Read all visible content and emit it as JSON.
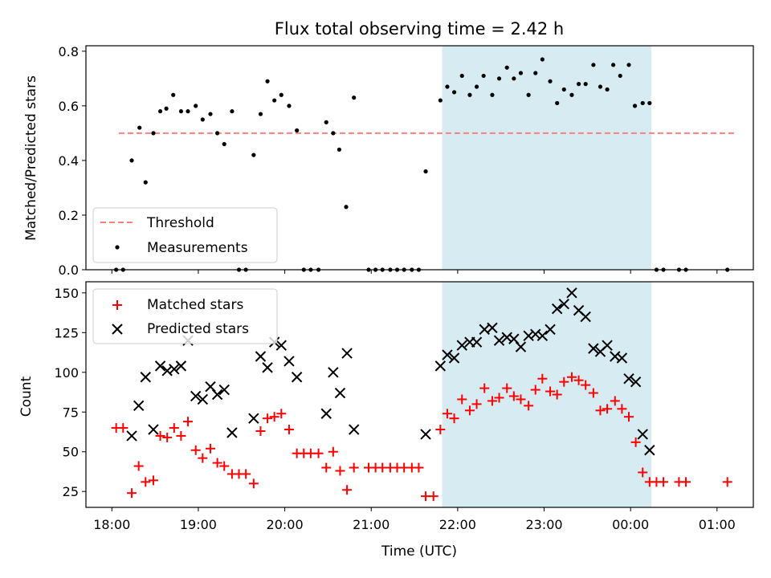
{
  "chart_data": [
    {
      "type": "scatter",
      "title": "Flux total observing time = 2.42 h",
      "xlabel": "",
      "ylabel": "Matched/Predicted stars",
      "ylim": [
        0,
        0.82
      ],
      "yticks": [
        "0.0",
        "0.2",
        "0.4",
        "0.6",
        "0.8"
      ],
      "xlim": [
        17.7,
        25.42
      ],
      "x_tick_values": [
        18,
        19,
        20,
        21,
        22,
        23,
        24,
        25
      ],
      "highlight_span": [
        21.82,
        24.24
      ],
      "highlight_color": "#add8e6",
      "threshold": {
        "name": "Threshold",
        "value": 0.5,
        "x_range": [
          18.08,
          25.2
        ],
        "color": "#ff7f7f"
      },
      "legend": {
        "position": "lower-left",
        "entries": [
          "Threshold",
          "Measurements"
        ]
      },
      "series": [
        {
          "name": "Measurements",
          "color": "#000000",
          "x": [
            18.05,
            18.13,
            18.23,
            18.32,
            18.39,
            18.48,
            18.56,
            18.63,
            18.71,
            18.8,
            18.88,
            18.97,
            19.05,
            19.14,
            19.22,
            19.3,
            19.39,
            19.47,
            19.55,
            19.64,
            19.72,
            19.8,
            19.88,
            19.96,
            20.05,
            20.14,
            20.22,
            20.3,
            20.39,
            20.48,
            20.56,
            20.63,
            20.71,
            20.8,
            20.97,
            21.05,
            21.13,
            21.22,
            21.3,
            21.38,
            21.47,
            21.55,
            21.63,
            21.8,
            21.88,
            21.96,
            22.05,
            22.14,
            22.22,
            22.3,
            22.4,
            22.48,
            22.57,
            22.65,
            22.73,
            22.82,
            22.9,
            22.98,
            23.07,
            23.15,
            23.23,
            23.32,
            23.4,
            23.48,
            23.57,
            23.65,
            23.73,
            23.8,
            23.88,
            23.98,
            24.05,
            24.14,
            24.22,
            24.3,
            24.38,
            24.56,
            24.64,
            25.12
          ],
          "values": [
            0.0,
            0.0,
            0.4,
            0.52,
            0.32,
            0.5,
            0.58,
            0.59,
            0.64,
            0.58,
            0.58,
            0.6,
            0.55,
            0.57,
            0.5,
            0.46,
            0.58,
            0.0,
            0.0,
            0.42,
            0.57,
            0.69,
            0.62,
            0.64,
            0.6,
            0.51,
            0.0,
            0.0,
            0.0,
            0.54,
            0.5,
            0.44,
            0.23,
            0.63,
            0.0,
            0.0,
            0.0,
            0.0,
            0.0,
            0.0,
            0.0,
            0.0,
            0.36,
            0.62,
            0.67,
            0.65,
            0.71,
            0.64,
            0.67,
            0.71,
            0.64,
            0.7,
            0.74,
            0.7,
            0.72,
            0.64,
            0.72,
            0.77,
            0.69,
            0.61,
            0.66,
            0.64,
            0.68,
            0.68,
            0.75,
            0.67,
            0.66,
            0.75,
            0.71,
            0.75,
            0.6,
            0.61,
            0.61,
            0.0,
            0.0,
            0.0,
            0.0,
            0.0
          ]
        }
      ]
    },
    {
      "type": "scatter",
      "title": "",
      "xlabel": "Time (UTC)",
      "ylabel": "Count",
      "ylim": [
        15,
        157
      ],
      "yticks": [
        "25",
        "50",
        "75",
        "100",
        "125",
        "150"
      ],
      "ytick_values": [
        25,
        50,
        75,
        100,
        125,
        150
      ],
      "xlim": [
        17.7,
        25.42
      ],
      "x_tick_values": [
        18,
        19,
        20,
        21,
        22,
        23,
        24,
        25
      ],
      "xticks": [
        "18:00",
        "19:00",
        "20:00",
        "21:00",
        "22:00",
        "23:00",
        "00:00",
        "01:00"
      ],
      "highlight_span": [
        21.82,
        24.24
      ],
      "highlight_color": "#add8e6",
      "legend": {
        "position": "upper-left",
        "entries": [
          "Matched stars",
          "Predicted stars"
        ]
      },
      "series": [
        {
          "name": "Matched stars",
          "color": "#ff0000",
          "x": [
            18.05,
            18.13,
            18.23,
            18.31,
            18.39,
            18.48,
            18.56,
            18.64,
            18.72,
            18.8,
            18.88,
            18.97,
            19.05,
            19.14,
            19.22,
            19.3,
            19.39,
            19.47,
            19.55,
            19.64,
            19.72,
            19.8,
            19.88,
            19.96,
            20.05,
            20.14,
            20.22,
            20.3,
            20.39,
            20.48,
            20.56,
            20.64,
            20.72,
            20.8,
            20.97,
            21.05,
            21.13,
            21.22,
            21.3,
            21.38,
            21.47,
            21.55,
            21.63,
            21.72,
            21.8,
            21.88,
            21.96,
            22.05,
            22.14,
            22.22,
            22.31,
            22.4,
            22.48,
            22.57,
            22.65,
            22.73,
            22.82,
            22.9,
            22.98,
            23.07,
            23.15,
            23.23,
            23.32,
            23.4,
            23.48,
            23.57,
            23.65,
            23.73,
            23.82,
            23.9,
            23.98,
            24.06,
            24.14,
            24.22,
            24.3,
            24.38,
            24.56,
            24.64,
            25.12
          ],
          "values": [
            65,
            65,
            24,
            41,
            31,
            32,
            60,
            59,
            65,
            60,
            69,
            51,
            46,
            52,
            43,
            41,
            36,
            36,
            36,
            30,
            63,
            71,
            72,
            74,
            64,
            49,
            49,
            49,
            49,
            40,
            50,
            38,
            26,
            40,
            40,
            40,
            40,
            40,
            40,
            40,
            40,
            40,
            22,
            22,
            64,
            74,
            71,
            83,
            76,
            80,
            90,
            82,
            84,
            90,
            85,
            83,
            79,
            89,
            96,
            88,
            86,
            94,
            97,
            95,
            92,
            87,
            76,
            77,
            82,
            77,
            72,
            56,
            37,
            31,
            31,
            31,
            31,
            31,
            31
          ]
        },
        {
          "name": "Predicted stars",
          "color": "#000000",
          "x": [
            18.23,
            18.31,
            18.39,
            18.48,
            18.56,
            18.64,
            18.72,
            18.8,
            18.88,
            18.97,
            19.05,
            19.14,
            19.22,
            19.3,
            19.39,
            19.64,
            19.72,
            19.8,
            19.88,
            19.96,
            20.05,
            20.14,
            20.48,
            20.56,
            20.64,
            20.72,
            20.8,
            21.63,
            21.8,
            21.88,
            21.96,
            22.05,
            22.14,
            22.22,
            22.31,
            22.4,
            22.48,
            22.57,
            22.65,
            22.73,
            22.82,
            22.9,
            22.98,
            23.07,
            23.15,
            23.23,
            23.32,
            23.4,
            23.48,
            23.57,
            23.65,
            23.73,
            23.82,
            23.9,
            23.98,
            24.06,
            24.14,
            24.22
          ],
          "values": [
            60,
            79,
            97,
            64,
            104,
            101,
            102,
            104,
            120,
            85,
            83,
            91,
            86,
            89,
            62,
            71,
            110,
            103,
            119,
            117,
            107,
            97,
            74,
            100,
            87,
            112,
            64,
            61,
            104,
            111,
            109,
            117,
            119,
            119,
            127,
            128,
            120,
            122,
            121,
            116,
            123,
            124,
            123,
            127,
            140,
            143,
            150,
            139,
            135,
            115,
            113,
            117,
            110,
            109,
            96,
            94,
            61,
            51
          ]
        }
      ]
    }
  ]
}
